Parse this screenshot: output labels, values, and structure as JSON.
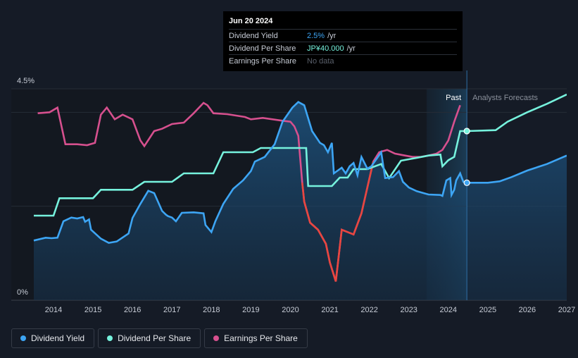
{
  "tooltip": {
    "date": "Jun 20 2024",
    "rows": [
      {
        "label": "Dividend Yield",
        "value": "2.5%",
        "suffix": "/yr"
      },
      {
        "label": "Dividend Per Share",
        "value": "JP¥40.000",
        "suffix": "/yr"
      },
      {
        "label": "Earnings Per Share",
        "value": "No data",
        "suffix": ""
      }
    ]
  },
  "legend": [
    {
      "label": "Dividend Yield",
      "color": "#3da5f4"
    },
    {
      "label": "Dividend Per Share",
      "color": "#76f2dd"
    },
    {
      "label": "Earnings Per Share",
      "color": "#d6508e"
    }
  ],
  "chart_data": {
    "type": "line",
    "title": "",
    "xlabel": "",
    "ylabel": "",
    "xlim": [
      2013.5,
      2027.0
    ],
    "ylim": [
      0,
      4.5
    ],
    "y_ticks": [
      {
        "value": 4.5,
        "label": "4.5%"
      },
      {
        "value": 0,
        "label": "0%"
      }
    ],
    "x_ticks": [
      "2014",
      "2015",
      "2016",
      "2017",
      "2018",
      "2019",
      "2020",
      "2021",
      "2022",
      "2023",
      "2024",
      "2025",
      "2026",
      "2027"
    ],
    "past_label": "Past",
    "forecast_label": "Analysts Forecasts",
    "forecast_start": 2024.47,
    "colors": {
      "yield": "#3da5f4",
      "dps": "#76f2dd",
      "eps": "#d6508e",
      "eps_low": "#e8463f"
    },
    "series": [
      {
        "name": "Dividend Yield",
        "unit": "%",
        "points": [
          [
            2013.5,
            1.27
          ],
          [
            2013.8,
            1.33
          ],
          [
            2013.95,
            1.32
          ],
          [
            2014.1,
            1.33
          ],
          [
            2014.25,
            1.68
          ],
          [
            2014.45,
            1.76
          ],
          [
            2014.6,
            1.74
          ],
          [
            2014.75,
            1.77
          ],
          [
            2014.8,
            1.67
          ],
          [
            2014.9,
            1.72
          ],
          [
            2014.95,
            1.5
          ],
          [
            2015.2,
            1.31
          ],
          [
            2015.4,
            1.22
          ],
          [
            2015.6,
            1.25
          ],
          [
            2015.9,
            1.42
          ],
          [
            2016.0,
            1.75
          ],
          [
            2016.2,
            2.05
          ],
          [
            2016.4,
            2.33
          ],
          [
            2016.55,
            2.28
          ],
          [
            2016.75,
            1.9
          ],
          [
            2016.85,
            1.82
          ],
          [
            2016.9,
            1.79
          ],
          [
            2017.0,
            1.76
          ],
          [
            2017.1,
            1.68
          ],
          [
            2017.25,
            1.86
          ],
          [
            2017.55,
            1.87
          ],
          [
            2017.8,
            1.85
          ],
          [
            2017.85,
            1.6
          ],
          [
            2018.0,
            1.45
          ],
          [
            2018.1,
            1.68
          ],
          [
            2018.3,
            2.05
          ],
          [
            2018.55,
            2.37
          ],
          [
            2018.8,
            2.55
          ],
          [
            2019.0,
            2.75
          ],
          [
            2019.1,
            2.95
          ],
          [
            2019.35,
            3.05
          ],
          [
            2019.6,
            3.32
          ],
          [
            2019.8,
            3.8
          ],
          [
            2020.05,
            4.1
          ],
          [
            2020.2,
            4.22
          ],
          [
            2020.35,
            4.15
          ],
          [
            2020.55,
            3.6
          ],
          [
            2020.75,
            3.35
          ],
          [
            2020.85,
            3.3
          ],
          [
            2020.95,
            3.15
          ],
          [
            2021.05,
            3.35
          ],
          [
            2021.1,
            2.7
          ],
          [
            2021.3,
            2.82
          ],
          [
            2021.4,
            2.7
          ],
          [
            2021.5,
            2.85
          ],
          [
            2021.6,
            2.92
          ],
          [
            2021.7,
            2.66
          ],
          [
            2021.8,
            3.05
          ],
          [
            2021.95,
            2.8
          ],
          [
            2022.05,
            2.85
          ],
          [
            2022.3,
            3.15
          ],
          [
            2022.4,
            2.6
          ],
          [
            2022.6,
            2.62
          ],
          [
            2022.75,
            2.75
          ],
          [
            2022.85,
            2.52
          ],
          [
            2023.0,
            2.4
          ],
          [
            2023.2,
            2.32
          ],
          [
            2023.5,
            2.25
          ],
          [
            2023.8,
            2.24
          ],
          [
            2023.85,
            2.22
          ],
          [
            2023.95,
            2.55
          ],
          [
            2024.05,
            2.6
          ],
          [
            2024.08,
            2.24
          ],
          [
            2024.15,
            2.35
          ],
          [
            2024.2,
            2.55
          ],
          [
            2024.3,
            2.7
          ],
          [
            2024.38,
            2.52
          ],
          [
            2024.47,
            2.5
          ],
          [
            2024.7,
            2.5
          ],
          [
            2025.0,
            2.5
          ],
          [
            2025.3,
            2.53
          ],
          [
            2025.6,
            2.62
          ],
          [
            2026.0,
            2.76
          ],
          [
            2026.5,
            2.9
          ],
          [
            2027.0,
            3.08
          ]
        ]
      },
      {
        "name": "Dividend Per Share",
        "unit": "JP¥",
        "points": [
          [
            2013.5,
            1.8
          ],
          [
            2013.9,
            1.8
          ],
          [
            2014.0,
            1.8
          ],
          [
            2014.15,
            2.17
          ],
          [
            2014.4,
            2.17
          ],
          [
            2014.65,
            2.17
          ],
          [
            2015.0,
            2.17
          ],
          [
            2015.2,
            2.35
          ],
          [
            2015.5,
            2.35
          ],
          [
            2016.0,
            2.35
          ],
          [
            2016.3,
            2.52
          ],
          [
            2016.6,
            2.52
          ],
          [
            2017.0,
            2.52
          ],
          [
            2017.3,
            2.7
          ],
          [
            2017.6,
            2.7
          ],
          [
            2018.05,
            2.7
          ],
          [
            2018.3,
            3.15
          ],
          [
            2018.6,
            3.15
          ],
          [
            2019.05,
            3.15
          ],
          [
            2019.25,
            3.24
          ],
          [
            2019.8,
            3.24
          ],
          [
            2020.25,
            3.24
          ],
          [
            2020.4,
            3.24
          ],
          [
            2020.45,
            2.43
          ],
          [
            2020.8,
            2.43
          ],
          [
            2021.05,
            2.43
          ],
          [
            2021.25,
            2.61
          ],
          [
            2021.45,
            2.61
          ],
          [
            2021.6,
            2.79
          ],
          [
            2021.95,
            2.79
          ],
          [
            2022.3,
            2.9
          ],
          [
            2022.5,
            2.6
          ],
          [
            2022.8,
            2.97
          ],
          [
            2023.2,
            3.03
          ],
          [
            2023.5,
            3.08
          ],
          [
            2023.8,
            3.1
          ],
          [
            2023.85,
            2.85
          ],
          [
            2024.0,
            2.98
          ],
          [
            2024.15,
            3.05
          ],
          [
            2024.3,
            3.6
          ],
          [
            2024.47,
            3.6
          ],
          [
            2025.2,
            3.62
          ],
          [
            2025.5,
            3.8
          ],
          [
            2026.0,
            4.0
          ],
          [
            2026.5,
            4.18
          ],
          [
            2027.0,
            4.38
          ]
        ]
      },
      {
        "name": "Earnings Per Share",
        "unit": "JP¥",
        "points": [
          [
            2013.6,
            3.98
          ],
          [
            2013.9,
            4.0
          ],
          [
            2014.1,
            4.1
          ],
          [
            2014.3,
            3.32
          ],
          [
            2014.6,
            3.32
          ],
          [
            2014.85,
            3.3
          ],
          [
            2015.05,
            3.35
          ],
          [
            2015.2,
            3.95
          ],
          [
            2015.35,
            4.1
          ],
          [
            2015.55,
            3.85
          ],
          [
            2015.75,
            3.95
          ],
          [
            2016.0,
            3.85
          ],
          [
            2016.2,
            3.4
          ],
          [
            2016.3,
            3.28
          ],
          [
            2016.55,
            3.6
          ],
          [
            2016.75,
            3.65
          ],
          [
            2017.0,
            3.75
          ],
          [
            2017.3,
            3.78
          ],
          [
            2017.55,
            3.98
          ],
          [
            2017.8,
            4.2
          ],
          [
            2017.9,
            4.15
          ],
          [
            2018.05,
            3.98
          ],
          [
            2018.4,
            3.96
          ],
          [
            2018.85,
            3.9
          ],
          [
            2019.0,
            3.85
          ],
          [
            2019.3,
            3.88
          ],
          [
            2019.8,
            3.82
          ],
          [
            2020.0,
            3.8
          ],
          [
            2020.1,
            3.7
          ],
          [
            2020.2,
            3.5
          ],
          [
            2020.3,
            2.5
          ],
          [
            2020.35,
            2.1
          ],
          [
            2020.5,
            1.65
          ],
          [
            2020.7,
            1.5
          ],
          [
            2020.9,
            1.2
          ],
          [
            2021.0,
            0.8
          ],
          [
            2021.15,
            0.4
          ],
          [
            2021.3,
            1.5
          ],
          [
            2021.45,
            1.45
          ],
          [
            2021.6,
            1.4
          ],
          [
            2021.8,
            1.85
          ],
          [
            2021.95,
            2.4
          ],
          [
            2022.1,
            2.95
          ],
          [
            2022.25,
            3.15
          ],
          [
            2022.45,
            3.2
          ],
          [
            2022.65,
            3.12
          ],
          [
            2022.9,
            3.08
          ],
          [
            2023.1,
            3.05
          ],
          [
            2023.3,
            3.05
          ],
          [
            2023.5,
            3.08
          ],
          [
            2023.7,
            3.12
          ],
          [
            2023.85,
            3.2
          ],
          [
            2024.0,
            3.4
          ],
          [
            2024.15,
            3.8
          ],
          [
            2024.3,
            4.15
          ]
        ]
      }
    ]
  }
}
